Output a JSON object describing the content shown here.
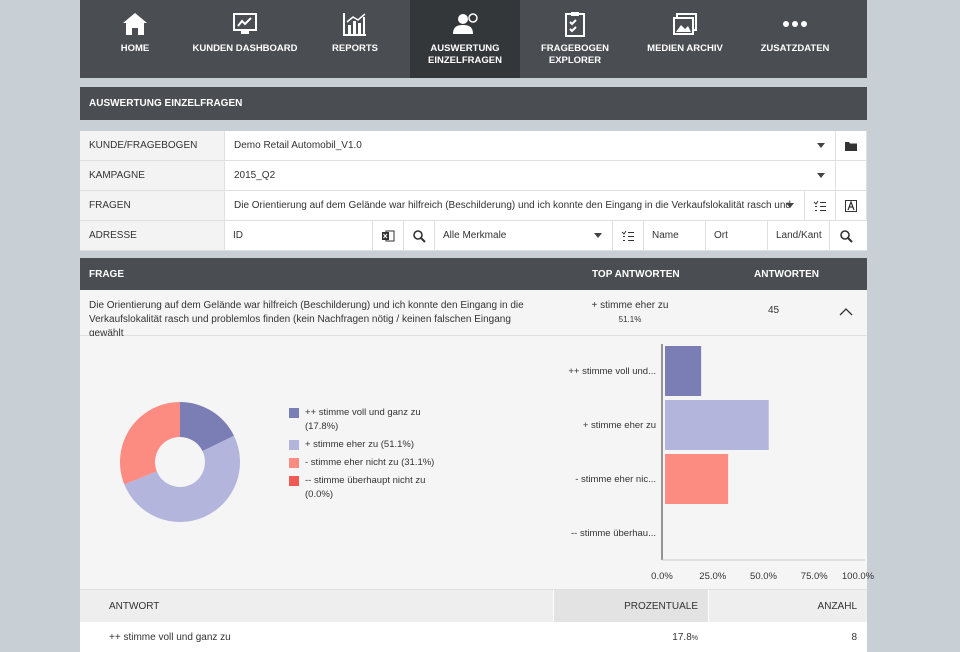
{
  "nav": {
    "items": [
      {
        "label": "HOME",
        "icon": "home-icon"
      },
      {
        "label": "KUNDEN DASHBOARD",
        "icon": "dashboard-icon"
      },
      {
        "label": "REPORTS",
        "icon": "chart-icon"
      },
      {
        "label": "AUSWERTUNG\nEINZELFRAGEN",
        "line1": "AUSWERTUNG",
        "line2": "EINZELFRAGEN",
        "icon": "user-analysis-icon",
        "active": true
      },
      {
        "label": "FRAGEBOGEN EXPLORER",
        "icon": "clipboard-icon"
      },
      {
        "label": "MEDIEN ARCHIV",
        "icon": "images-icon"
      },
      {
        "label": "ZUSATZDATEN",
        "icon": "more-icon"
      }
    ]
  },
  "section": {
    "title": "AUSWERTUNG EINZELFRAGEN"
  },
  "filters": {
    "kunde_label": "KUNDE/FRAGEBOGEN",
    "kunde_value": "Demo Retail Automobil_V1.0",
    "kampagne_label": "KAMPAGNE",
    "kampagne_value": "2015_Q2",
    "fragen_label": "FRAGEN",
    "fragen_value": "Die Orientierung auf dem Gelände war hilfreich (Beschilderung) und ich konnte den Eingang in die Verkaufslokalität rasch und",
    "adresse_label": "ADRESSE",
    "id_value": "ID",
    "merkmale_value": "Alle Merkmale",
    "name_label": "Name",
    "ort_label": "Ort",
    "land_label": "Land/Kant"
  },
  "results": {
    "col_frage": "FRAGE",
    "col_top": "TOP ANTWORTEN",
    "col_antworten": "ANTWORTEN",
    "question_line1": "Die Orientierung auf dem Gelände war hilfreich (Beschilderung) und ich konnte den Eingang in die",
    "question_line2": "Verkaufslokalität rasch und problemlos finden (kein Nachfragen nötig / keinen falschen Eingang gewählt",
    "top_answer": "+ stimme eher zu",
    "top_pct": "51.1%",
    "count": "45"
  },
  "legend": [
    {
      "text": "++ stimme voll und ganz zu (17.8%)",
      "color": "#7b7db5"
    },
    {
      "text": "+ stimme eher zu (51.1%)",
      "color": "#b3b5dc"
    },
    {
      "text": "- stimme eher nicht zu (31.1%)",
      "color": "#fc8b82"
    },
    {
      "text": "-- stimme überhaupt nicht zu (0.0%)",
      "color": "#ef5a52"
    }
  ],
  "chart_data": {
    "type": "bar",
    "orientation": "horizontal",
    "categories": [
      "++ stimme voll und...",
      "+ stimme eher zu",
      "- stimme eher nic...",
      "-- stimme überhau..."
    ],
    "values": [
      17.8,
      51.1,
      31.1,
      0.0
    ],
    "colors": [
      "#7b7db5",
      "#b3b5dc",
      "#fc8b82",
      "#ef5a52"
    ],
    "xlim": [
      0,
      100
    ],
    "xticks": [
      "0.0%",
      "25.0%",
      "50.0%",
      "75.0%",
      "100.0%"
    ],
    "title": "",
    "xlabel": "",
    "ylabel": ""
  },
  "answers": {
    "col_antwort": "ANTWORT",
    "col_prozent": "PROZENTUALE",
    "col_anzahl": "ANZAHL",
    "rows": [
      {
        "answer": "++ stimme voll und ganz zu",
        "pct": "17.8",
        "pct_unit": "%",
        "count": "8"
      }
    ]
  }
}
